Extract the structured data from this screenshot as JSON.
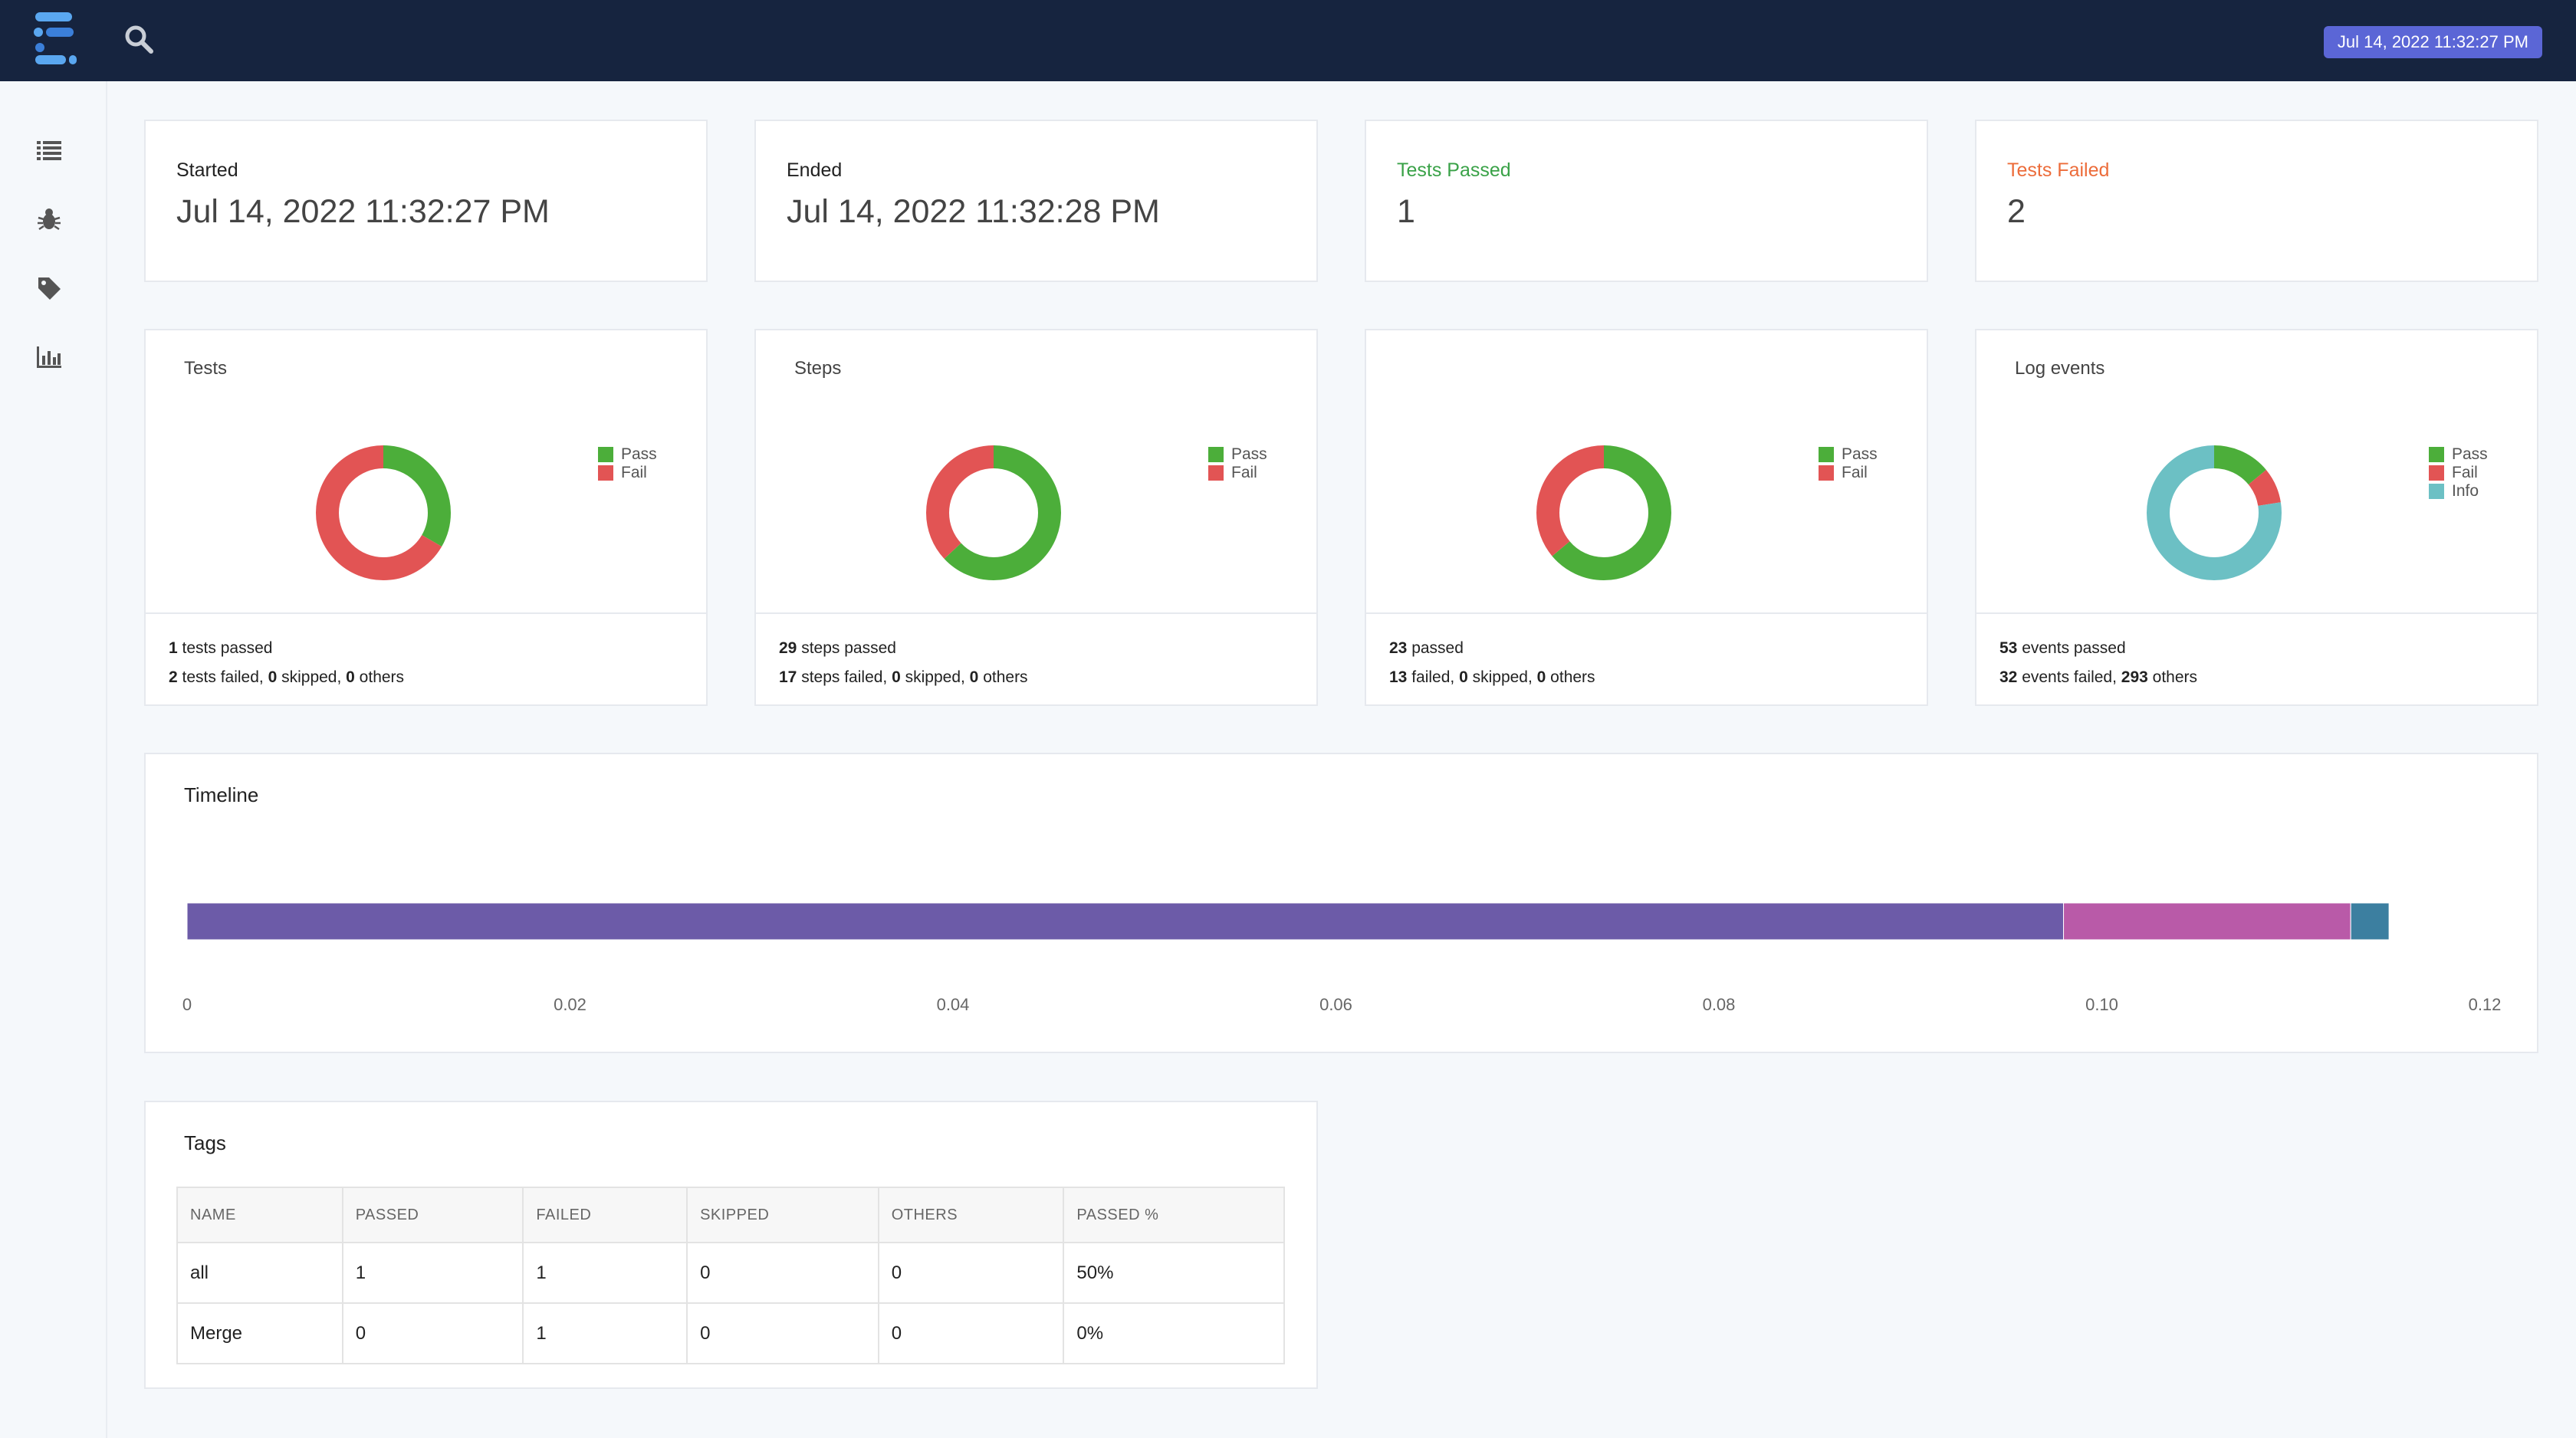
{
  "header": {
    "datetime_badge": "Jul 14, 2022 11:32:27 PM",
    "logo_icon": "extent-logo-icon",
    "search_icon": "search-icon"
  },
  "sidebar": {
    "items": [
      {
        "icon": "list-icon"
      },
      {
        "icon": "bug-icon"
      },
      {
        "icon": "tag-icon"
      },
      {
        "icon": "bar-chart-icon"
      }
    ]
  },
  "stats": {
    "started": {
      "label": "Started",
      "value": "Jul 14, 2022 11:32:27 PM"
    },
    "ended": {
      "label": "Ended",
      "value": "Jul 14, 2022 11:32:28 PM"
    },
    "passed": {
      "label": "Tests Passed",
      "value": "1"
    },
    "failed": {
      "label": "Tests Failed",
      "value": "2"
    }
  },
  "colors": {
    "pass": "#4cae3a",
    "fail": "#e25454",
    "info": "#6cc0c4",
    "timeline": [
      "#6c5ba8",
      "#b95aa8",
      "#3c7fa0"
    ]
  },
  "charts": {
    "tests": {
      "title": "Tests",
      "legend": [
        "Pass",
        "Fail"
      ],
      "values": {
        "pass": 1,
        "fail": 2
      },
      "footer": {
        "line1_num": "1",
        "line1_text": " tests passed",
        "line2_num1": "2",
        "line2_text1": " tests failed, ",
        "line2_num2": "0",
        "line2_text2": " skipped, ",
        "line2_num3": "0",
        "line2_text3": " others"
      }
    },
    "steps": {
      "title": "Steps",
      "legend": [
        "Pass",
        "Fail"
      ],
      "values": {
        "pass": 29,
        "fail": 17
      },
      "footer": {
        "line1_num": "29",
        "line1_text": " steps passed",
        "line2_num1": "17",
        "line2_text1": " steps failed, ",
        "line2_num2": "0",
        "line2_text2": " skipped, ",
        "line2_num3": "0",
        "line2_text3": " others"
      }
    },
    "third": {
      "title": "",
      "legend": [
        "Pass",
        "Fail"
      ],
      "values": {
        "pass": 23,
        "fail": 13
      },
      "footer": {
        "line1_num": "23",
        "line1_text": " passed",
        "line2_num1": "13",
        "line2_text1": " failed, ",
        "line2_num2": "0",
        "line2_text2": " skipped, ",
        "line2_num3": "0",
        "line2_text3": " others"
      }
    },
    "log": {
      "title": "Log events",
      "legend": [
        "Pass",
        "Fail",
        "Info"
      ],
      "values": {
        "pass": 53,
        "fail": 32,
        "info": 293
      },
      "footer": {
        "line1_num": "53",
        "line1_text": " events passed",
        "line2_num1": "32",
        "line2_text1": " events failed, ",
        "line2_num2": "293",
        "line2_text2": " others"
      }
    }
  },
  "chart_data": {
    "type": "bar",
    "title": "Timeline",
    "orientation": "horizontal-stacked",
    "series": [
      {
        "values": [
          0.098
        ]
      },
      {
        "values": [
          0.015
        ]
      },
      {
        "values": [
          0.002
        ]
      }
    ],
    "xticks": [
      "0",
      "0.02",
      "0.04",
      "0.06",
      "0.08",
      "0.10",
      "0.12"
    ],
    "xlim": [
      0,
      0.12
    ]
  },
  "tags": {
    "title": "Tags",
    "columns": [
      "NAME",
      "PASSED",
      "FAILED",
      "SKIPPED",
      "OTHERS",
      "PASSED %"
    ],
    "rows": [
      [
        "all",
        "1",
        "1",
        "0",
        "0",
        "50%"
      ],
      [
        "Merge",
        "0",
        "1",
        "0",
        "0",
        "0%"
      ]
    ]
  }
}
